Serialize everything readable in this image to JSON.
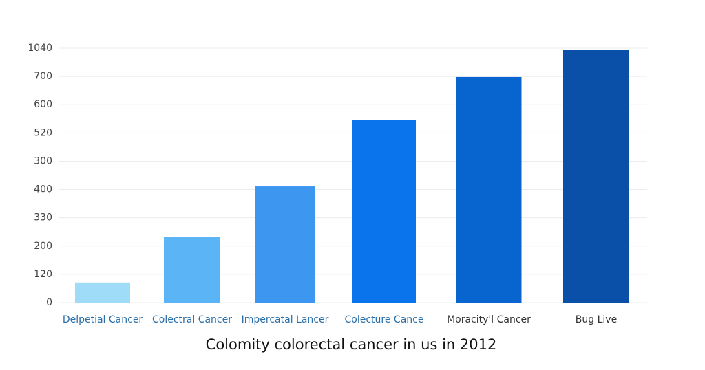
{
  "chart_data": {
    "type": "bar",
    "title": "Colomity colorectal cancer in us in 2012",
    "categories": [
      "Delpetial Cancer",
      "Colectral Cancer",
      "Impercatal Lancer",
      "Colecture Cance",
      "Moracity'l Cancer",
      "Bug Live"
    ],
    "values": [
      0.71,
      2.31,
      4.11,
      6.45,
      7.98,
      8.95
    ],
    "colors": [
      "#9fdcf8",
      "#5ab4f5",
      "#3d97f0",
      "#0a74ec",
      "#0865d0",
      "#0a4fa8"
    ],
    "ylim": [
      0,
      9
    ],
    "yticks": [
      {
        "value": 0,
        "label": "0"
      },
      {
        "value": 1,
        "label": "120"
      },
      {
        "value": 2,
        "label": "200"
      },
      {
        "value": 3,
        "label": "330"
      },
      {
        "value": 4,
        "label": "400"
      },
      {
        "value": 5,
        "label": "300"
      },
      {
        "value": 6,
        "label": "520"
      },
      {
        "value": 7,
        "label": "600"
      },
      {
        "value": 8,
        "label": "700"
      },
      {
        "value": 9,
        "label": "1040"
      }
    ],
    "grid": true
  }
}
